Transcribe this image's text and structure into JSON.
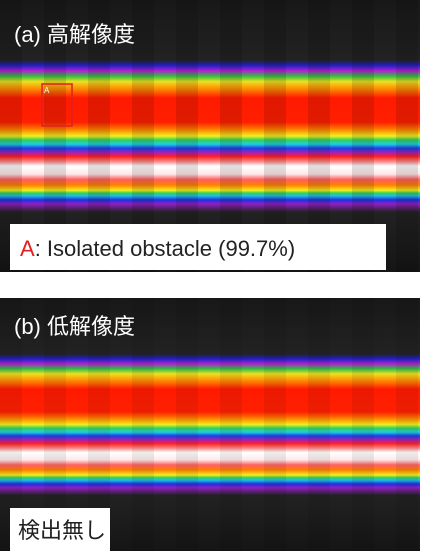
{
  "panel_a": {
    "title": "(a) 高解像度",
    "box_label": "A",
    "legend_key": "A",
    "legend_text": ": Isolated obstacle (99.7%)"
  },
  "panel_b": {
    "title": "(b) 低解像度",
    "legend_text": "検出無し"
  }
}
